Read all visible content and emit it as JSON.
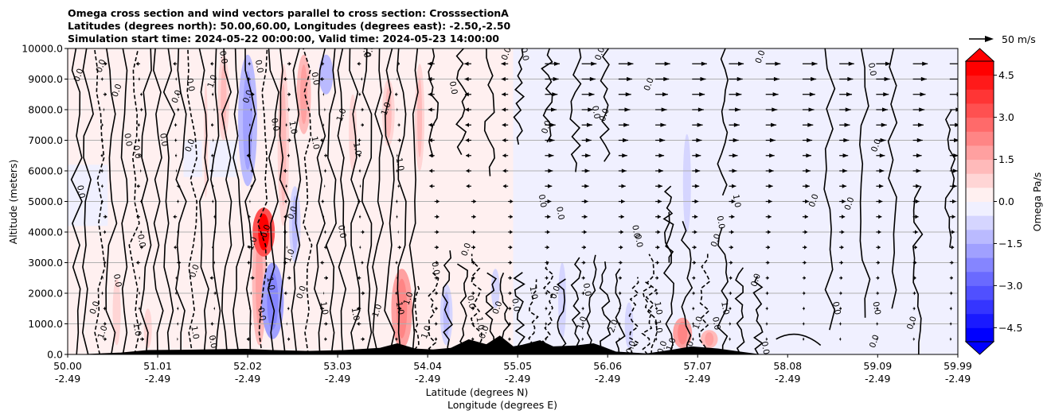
{
  "chart_data": {
    "type": "heatmap",
    "title_lines": [
      "Omega cross section and wind vectors parallel to cross section: CrosssectionA",
      "Latitudes (degrees north): 50.00,60.00, Longitudes (degrees east): -2.50,-2.50",
      "Simulation start time: 2024-05-22 00:00:00, Valid time: 2024-05-23 14:00:00"
    ],
    "ylabel": "Altitude (meters)",
    "xlabel_lines": [
      "Latitude (degrees N)",
      "Longitude (degrees E)"
    ],
    "ylim": [
      0,
      10000
    ],
    "y_ticks": [
      "0.0",
      "1000.0",
      "2000.0",
      "3000.0",
      "4000.0",
      "5000.0",
      "6000.0",
      "7000.0",
      "8000.0",
      "9000.0",
      "10000.0"
    ],
    "y_tick_values": [
      0,
      1000,
      2000,
      3000,
      4000,
      5000,
      6000,
      7000,
      8000,
      9000,
      10000
    ],
    "xlim": [
      50.0,
      59.99
    ],
    "x_tick_values": [
      50.0,
      51.01,
      52.02,
      53.03,
      54.04,
      55.05,
      56.06,
      57.07,
      58.08,
      59.09,
      59.99
    ],
    "x_ticks_lat": [
      "50.00",
      "51.01",
      "52.02",
      "53.03",
      "54.04",
      "55.05",
      "56.06",
      "57.07",
      "58.08",
      "59.09",
      "59.99"
    ],
    "x_ticks_lon": [
      "-2.49",
      "-2.49",
      "-2.49",
      "-2.49",
      "-2.49",
      "-2.49",
      "-2.49",
      "-2.49",
      "-2.49",
      "-2.49",
      "-2.49"
    ],
    "grid": "horizontal",
    "colorbar": {
      "label": "Omega Pa/s",
      "range": [
        -5.0,
        5.0
      ],
      "tick_values": [
        4.5,
        3.0,
        1.5,
        0.0,
        -1.5,
        -3.0,
        -4.5
      ],
      "tick_labels": [
        "4.5",
        "3.0",
        "1.5",
        "0.0",
        "−1.5",
        "−3.0",
        "−4.5"
      ],
      "extend": "both",
      "colors_bottom_to_top": [
        "#0000ff",
        "#1a1aff",
        "#3535ff",
        "#5050ff",
        "#6a6aff",
        "#8585ff",
        "#a0a0ff",
        "#babaff",
        "#d5d5ff",
        "#f0f0ff",
        "#fff0f0",
        "#ffd5d5",
        "#ffbaba",
        "#ffa0a0",
        "#ff8585",
        "#ff6a6a",
        "#ff5050",
        "#ff3535",
        "#ff1a1a",
        "#ff0000"
      ]
    },
    "quiver_key": {
      "label": "50 m/s",
      "speed": 50
    },
    "wind_direction_zones": [
      {
        "lat_from": 50.0,
        "lat_to": 53.8,
        "direction": "mixed"
      },
      {
        "lat_from": 53.8,
        "lat_to": 55.0,
        "direction": "westward_aloft"
      },
      {
        "lat_from": 55.0,
        "lat_to": 59.99,
        "direction": "eastward"
      }
    ],
    "omega_features": [
      {
        "lat": 50.55,
        "alt_from": 300,
        "alt_to": 2500,
        "omega": 0.8
      },
      {
        "lat": 50.9,
        "alt_from": 200,
        "alt_to": 1500,
        "omega": 0.7
      },
      {
        "lat": 51.55,
        "alt_from": 4500,
        "alt_to": 9500,
        "omega": 0.6
      },
      {
        "lat": 51.75,
        "alt_from": 7000,
        "alt_to": 9800,
        "omega": 1.2
      },
      {
        "lat": 52.02,
        "alt_from": 5500,
        "alt_to": 9800,
        "omega": -2.0
      },
      {
        "lat": 52.15,
        "alt_from": 300,
        "alt_to": 4500,
        "omega": 1.5
      },
      {
        "lat": 52.2,
        "alt_from": 3200,
        "alt_to": 4800,
        "omega": 4.5
      },
      {
        "lat": 52.3,
        "alt_from": 500,
        "alt_to": 3000,
        "omega": -2.5
      },
      {
        "lat": 52.42,
        "alt_from": 4200,
        "alt_to": 9500,
        "omega": 1.2
      },
      {
        "lat": 52.55,
        "alt_from": 3000,
        "alt_to": 5500,
        "omega": -1.2
      },
      {
        "lat": 52.65,
        "alt_from": 7200,
        "alt_to": 9800,
        "omega": 1.5
      },
      {
        "lat": 52.9,
        "alt_from": 8500,
        "alt_to": 9800,
        "omega": -1.5
      },
      {
        "lat": 53.2,
        "alt_from": 6000,
        "alt_to": 8500,
        "omega": 0.8
      },
      {
        "lat": 53.6,
        "alt_from": 6800,
        "alt_to": 9000,
        "omega": 1.3
      },
      {
        "lat": 53.95,
        "alt_from": 6000,
        "alt_to": 9500,
        "omega": 1.0
      },
      {
        "lat": 53.75,
        "alt_from": 200,
        "alt_to": 2800,
        "omega": 2.2
      },
      {
        "lat": 54.25,
        "alt_from": 300,
        "alt_to": 2300,
        "omega": -1.3
      },
      {
        "lat": 54.8,
        "alt_from": 1500,
        "alt_to": 2800,
        "omega": -0.9
      },
      {
        "lat": 55.55,
        "alt_from": 500,
        "alt_to": 3000,
        "omega": -0.8
      },
      {
        "lat": 56.3,
        "alt_from": 200,
        "alt_to": 1700,
        "omega": -0.9
      },
      {
        "lat": 56.95,
        "alt_from": 4000,
        "alt_to": 7200,
        "omega": -0.7
      },
      {
        "lat": 56.9,
        "alt_from": 200,
        "alt_to": 1200,
        "omega": 2.0
      },
      {
        "lat": 57.2,
        "alt_from": 200,
        "alt_to": 800,
        "omega": 1.8
      }
    ],
    "contour_labels": [
      {
        "lat": 50.15,
        "alt": 9100,
        "text": "0.0"
      },
      {
        "lat": 50.4,
        "alt": 9400,
        "text": "0.0"
      },
      {
        "lat": 50.58,
        "alt": 8600,
        "text": "0.0"
      },
      {
        "lat": 50.65,
        "alt": 7000,
        "text": "0.0"
      },
      {
        "lat": 50.75,
        "alt": 6600,
        "text": "0.0"
      },
      {
        "lat": 50.12,
        "alt": 5300,
        "text": "0.0"
      },
      {
        "lat": 50.8,
        "alt": 3700,
        "text": "0.0"
      },
      {
        "lat": 50.53,
        "alt": 2400,
        "text": "0.0"
      },
      {
        "lat": 50.33,
        "alt": 1500,
        "text": "0.0"
      },
      {
        "lat": 50.42,
        "alt": 700,
        "text": "1.0"
      },
      {
        "lat": 50.75,
        "alt": 800,
        "text": "1.0"
      },
      {
        "lat": 51.05,
        "alt": 7000,
        "text": "0.0"
      },
      {
        "lat": 51.35,
        "alt": 8800,
        "text": "0.0"
      },
      {
        "lat": 51.25,
        "alt": 8400,
        "text": "0.0"
      },
      {
        "lat": 51.4,
        "alt": 6800,
        "text": "0.0"
      },
      {
        "lat": 51.45,
        "alt": 2700,
        "text": "0.0"
      },
      {
        "lat": 51.4,
        "alt": 700,
        "text": "1.0"
      },
      {
        "lat": 51.6,
        "alt": 400,
        "text": "0.0"
      },
      {
        "lat": 51.65,
        "alt": 8900,
        "text": "1.0"
      },
      {
        "lat": 51.72,
        "alt": 9700,
        "text": "0.0"
      },
      {
        "lat": 52.12,
        "alt": 9400,
        "text": "0.0"
      },
      {
        "lat": 52.05,
        "alt": 8400,
        "text": "0.0"
      },
      {
        "lat": 52.3,
        "alt": 7500,
        "text": "0.0"
      },
      {
        "lat": 52.25,
        "alt": 4000,
        "text": "0.0"
      },
      {
        "lat": 52.1,
        "alt": 3600,
        "text": "1.0"
      },
      {
        "lat": 52.25,
        "alt": 2300,
        "text": "1.0"
      },
      {
        "lat": 52.52,
        "alt": 3200,
        "text": "1.0"
      },
      {
        "lat": 52.5,
        "alt": 7400,
        "text": "1.0"
      },
      {
        "lat": 52.75,
        "alt": 9000,
        "text": "0.0"
      },
      {
        "lat": 52.75,
        "alt": 6900,
        "text": "1.0"
      },
      {
        "lat": 52.55,
        "alt": 4600,
        "text": "0.0"
      },
      {
        "lat": 52.65,
        "alt": 2000,
        "text": "0.0"
      },
      {
        "lat": 52.85,
        "alt": 1500,
        "text": "1.0"
      },
      {
        "lat": 52.15,
        "alt": 1300,
        "text": "0.0"
      },
      {
        "lat": 53.1,
        "alt": 7800,
        "text": "1.0"
      },
      {
        "lat": 53.22,
        "alt": 6700,
        "text": "1.0"
      },
      {
        "lat": 53.05,
        "alt": 4000,
        "text": "0.0"
      },
      {
        "lat": 53.2,
        "alt": 1300,
        "text": "1.0"
      },
      {
        "lat": 53.42,
        "alt": 9900,
        "text": "0.0"
      },
      {
        "lat": 53.32,
        "alt": 9900,
        "text": "0.0"
      },
      {
        "lat": 53.6,
        "alt": 8000,
        "text": "1.0"
      },
      {
        "lat": 53.7,
        "alt": 6200,
        "text": "1.0"
      },
      {
        "lat": 53.5,
        "alt": 1400,
        "text": "1.0"
      },
      {
        "lat": 53.7,
        "alt": 1500,
        "text": "1.0"
      },
      {
        "lat": 53.85,
        "alt": 1800,
        "text": "1.0"
      },
      {
        "lat": 54.05,
        "alt": 700,
        "text": "1.0"
      },
      {
        "lat": 54.1,
        "alt": 2800,
        "text": "0.0"
      },
      {
        "lat": 54.3,
        "alt": 8700,
        "text": "0.0"
      },
      {
        "lat": 54.5,
        "alt": 3400,
        "text": "0.0"
      },
      {
        "lat": 54.5,
        "alt": 1700,
        "text": "0.0"
      },
      {
        "lat": 54.6,
        "alt": 1000,
        "text": "1.0"
      },
      {
        "lat": 54.7,
        "alt": 700,
        "text": "0.0"
      },
      {
        "lat": 54.85,
        "alt": 1500,
        "text": "0.0"
      },
      {
        "lat": 55.0,
        "alt": 1600,
        "text": "0.0"
      },
      {
        "lat": 55.2,
        "alt": 2000,
        "text": "1.0"
      },
      {
        "lat": 54.95,
        "alt": 9800,
        "text": "0.0"
      },
      {
        "lat": 55.1,
        "alt": 9800,
        "text": "0.0"
      },
      {
        "lat": 55.4,
        "alt": 7400,
        "text": "0.0"
      },
      {
        "lat": 55.3,
        "alt": 5000,
        "text": "0.0"
      },
      {
        "lat": 55.5,
        "alt": 4600,
        "text": "0.0"
      },
      {
        "lat": 55.5,
        "alt": 2000,
        "text": "0.0"
      },
      {
        "lat": 55.8,
        "alt": 2100,
        "text": "0.0"
      },
      {
        "lat": 55.8,
        "alt": 1000,
        "text": "1.0"
      },
      {
        "lat": 56.0,
        "alt": 9800,
        "text": "0.0"
      },
      {
        "lat": 55.9,
        "alt": 7900,
        "text": "0.0"
      },
      {
        "lat": 56.05,
        "alt": 7800,
        "text": "0.0"
      },
      {
        "lat": 56.15,
        "alt": 900,
        "text": "2.0"
      },
      {
        "lat": 56.35,
        "alt": 200,
        "text": "0.0"
      },
      {
        "lat": 56.55,
        "alt": 8800,
        "text": "0.0"
      },
      {
        "lat": 56.35,
        "alt": 4000,
        "text": "0.0"
      },
      {
        "lat": 56.38,
        "alt": 3700,
        "text": "0.0"
      },
      {
        "lat": 56.6,
        "alt": 1500,
        "text": "1.0"
      },
      {
        "lat": 56.6,
        "alt": 900,
        "text": "1.0"
      },
      {
        "lat": 56.7,
        "alt": 200,
        "text": "0.0"
      },
      {
        "lat": 56.8,
        "alt": 300,
        "text": "1.0"
      },
      {
        "lat": 57.0,
        "alt": 200,
        "text": "0.0"
      },
      {
        "lat": 57.3,
        "alt": 4300,
        "text": "0.0"
      },
      {
        "lat": 57.3,
        "alt": 3700,
        "text": "0.0"
      },
      {
        "lat": 57.48,
        "alt": 5000,
        "text": "1.0"
      },
      {
        "lat": 57.1,
        "alt": 1000,
        "text": "1.0"
      },
      {
        "lat": 57.25,
        "alt": 1000,
        "text": "0.0"
      },
      {
        "lat": 57.35,
        "alt": 1500,
        "text": "1.0"
      },
      {
        "lat": 57.75,
        "alt": 2400,
        "text": "0.0"
      },
      {
        "lat": 57.8,
        "alt": 200,
        "text": "0.0"
      },
      {
        "lat": 57.8,
        "alt": 9700,
        "text": "0.0"
      },
      {
        "lat": 59.0,
        "alt": 9300,
        "text": "0.0"
      },
      {
        "lat": 59.1,
        "alt": 6800,
        "text": "0.0"
      },
      {
        "lat": 58.8,
        "alt": 4900,
        "text": "0.0"
      },
      {
        "lat": 58.4,
        "alt": 5000,
        "text": "0.0"
      },
      {
        "lat": 59.05,
        "alt": 1500,
        "text": "0.0"
      },
      {
        "lat": 58.6,
        "alt": 1500,
        "text": "0.0"
      },
      {
        "lat": 59.5,
        "alt": 1000,
        "text": "0.0"
      },
      {
        "lat": 59.08,
        "alt": 400,
        "text": "0.0"
      }
    ],
    "terrain": [
      {
        "lat": 50.0,
        "alt": 0
      },
      {
        "lat": 50.2,
        "alt": 0
      },
      {
        "lat": 50.6,
        "alt": 50
      },
      {
        "lat": 50.9,
        "alt": 130
      },
      {
        "lat": 51.3,
        "alt": 140
      },
      {
        "lat": 51.8,
        "alt": 160
      },
      {
        "lat": 52.0,
        "alt": 170
      },
      {
        "lat": 52.3,
        "alt": 130
      },
      {
        "lat": 52.7,
        "alt": 100
      },
      {
        "lat": 53.1,
        "alt": 130
      },
      {
        "lat": 53.5,
        "alt": 200
      },
      {
        "lat": 53.7,
        "alt": 350
      },
      {
        "lat": 53.9,
        "alt": 180
      },
      {
        "lat": 54.1,
        "alt": 150
      },
      {
        "lat": 54.3,
        "alt": 200
      },
      {
        "lat": 54.5,
        "alt": 480
      },
      {
        "lat": 54.7,
        "alt": 320
      },
      {
        "lat": 54.85,
        "alt": 600
      },
      {
        "lat": 55.0,
        "alt": 250
      },
      {
        "lat": 55.1,
        "alt": 300
      },
      {
        "lat": 55.3,
        "alt": 450
      },
      {
        "lat": 55.45,
        "alt": 250
      },
      {
        "lat": 55.7,
        "alt": 280
      },
      {
        "lat": 55.9,
        "alt": 350
      },
      {
        "lat": 56.0,
        "alt": 250
      },
      {
        "lat": 56.15,
        "alt": 80
      },
      {
        "lat": 56.5,
        "alt": 20
      },
      {
        "lat": 56.8,
        "alt": 150
      },
      {
        "lat": 57.0,
        "alt": 250
      },
      {
        "lat": 57.3,
        "alt": 180
      },
      {
        "lat": 57.6,
        "alt": 60
      },
      {
        "lat": 57.75,
        "alt": 0
      },
      {
        "lat": 59.99,
        "alt": 0
      }
    ]
  }
}
